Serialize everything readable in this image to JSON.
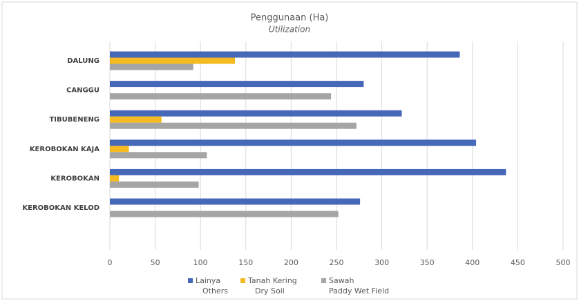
{
  "chart_data": {
    "type": "hbar",
    "title": "Penggunaan (Ha)",
    "subtitle": "Utilization",
    "categories": [
      "DALUNG",
      "CANGGU",
      "TIBUBENENG",
      "KEROBOKAN KAJA",
      "KEROBOKAN",
      "KEROBOKAN KELOD"
    ],
    "series": [
      {
        "name": "Lainya",
        "subname": "Others",
        "color": "#4668b8",
        "values": [
          386,
          280,
          322,
          404,
          437,
          276
        ]
      },
      {
        "name": "Tanah Kering",
        "subname": "Dry Soil",
        "color": "#f5b921",
        "values": [
          138,
          0,
          57,
          21,
          10,
          0
        ]
      },
      {
        "name": "Sawah",
        "subname": "Paddy Wet Field",
        "color": "#a5a5a5",
        "values": [
          92,
          244,
          272,
          107,
          98,
          252
        ]
      }
    ],
    "xlim": [
      0,
      500
    ],
    "xticks": [
      0,
      50,
      100,
      150,
      200,
      250,
      300,
      350,
      400,
      450,
      500
    ],
    "grid": true,
    "legend": "bottom"
  }
}
